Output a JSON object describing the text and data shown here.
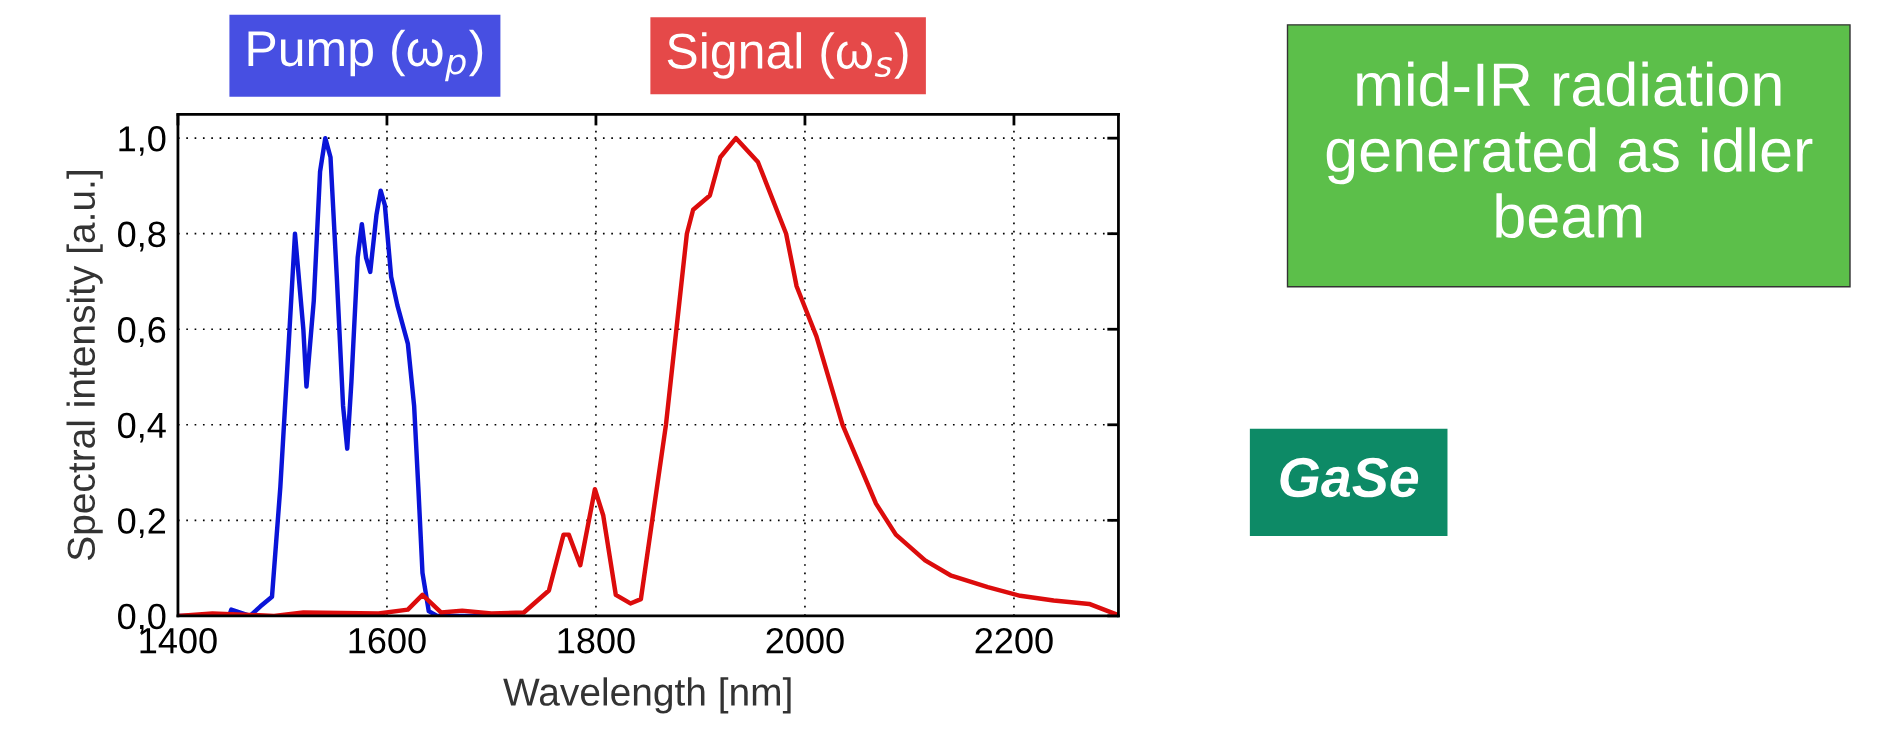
{
  "chart_data": {
    "type": "line",
    "xlabel": "Wavelength [nm]",
    "ylabel": "Spectral intensity [a.u.]",
    "xlim": [
      1400,
      2300
    ],
    "ylim": [
      0,
      1.05
    ],
    "xticks": [
      1400,
      1600,
      1800,
      2000,
      2200
    ],
    "yticks": [
      {
        "value": 0,
        "label": "0,0"
      },
      {
        "value": 0.2,
        "label": "0,2"
      },
      {
        "value": 0.4,
        "label": "0,4"
      },
      {
        "value": 0.6,
        "label": "0,6"
      },
      {
        "value": 0.8,
        "label": "0,8"
      },
      {
        "value": 1.0,
        "label": "1,0"
      }
    ],
    "grid": true,
    "legend": "top",
    "line_style": "solid",
    "marker": "none",
    "series": [
      {
        "name": "Pump (ω$_{p}$)",
        "color": "#0a14d8",
        "x": [
          1400,
          1449,
          1451,
          1469,
          1479,
          1490,
          1498,
          1506,
          1512,
          1520,
          1523,
          1530,
          1536,
          1541,
          1546,
          1552,
          1558,
          1562,
          1566,
          1572,
          1576,
          1580,
          1584,
          1590,
          1594,
          1598,
          1604,
          1610,
          1620,
          1626,
          1630,
          1634,
          1640,
          1648,
          1704
        ],
        "values": [
          0,
          0,
          0.013,
          0,
          0.02,
          0.04,
          0.27,
          0.57,
          0.8,
          0.6,
          0.48,
          0.66,
          0.93,
          1.0,
          0.96,
          0.71,
          0.44,
          0.35,
          0.49,
          0.75,
          0.82,
          0.75,
          0.72,
          0.84,
          0.89,
          0.86,
          0.71,
          0.65,
          0.57,
          0.44,
          0.27,
          0.09,
          0.01,
          0,
          0
        ]
      },
      {
        "name": "Signal (ω$_{s}$)",
        "color": "#dc0c0c",
        "x": [
          1400,
          1433,
          1492,
          1520,
          1592,
          1620,
          1634,
          1652,
          1672,
          1700,
          1731,
          1755,
          1769,
          1774,
          1785,
          1799,
          1807,
          1819,
          1833,
          1843,
          1867,
          1887,
          1893,
          1909,
          1919,
          1934,
          1955,
          1982,
          1992,
          2011,
          2036,
          2068,
          2087,
          2115,
          2140,
          2175,
          2206,
          2238,
          2272,
          2298
        ],
        "values": [
          0,
          0.005,
          0,
          0.007,
          0.005,
          0.013,
          0.044,
          0.007,
          0.011,
          0.005,
          0.007,
          0.053,
          0.17,
          0.17,
          0.106,
          0.265,
          0.21,
          0.044,
          0.026,
          0.035,
          0.4,
          0.8,
          0.85,
          0.88,
          0.96,
          1.0,
          0.95,
          0.8,
          0.69,
          0.585,
          0.4,
          0.235,
          0.17,
          0.116,
          0.084,
          0.06,
          0.042,
          0.032,
          0.025,
          0.003
        ]
      }
    ],
    "annotations": [
      "mid-IR radiation generated as idler beam",
      "GaSe"
    ]
  }
}
